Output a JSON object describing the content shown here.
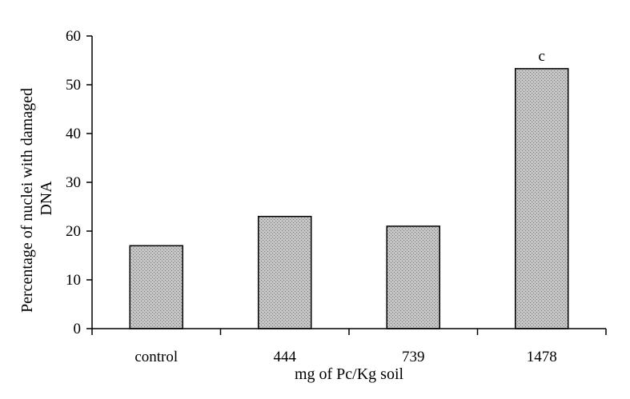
{
  "chart_data": {
    "type": "bar",
    "categories": [
      "control",
      "444",
      "739",
      "1478"
    ],
    "values": [
      17,
      23,
      21,
      53.3
    ],
    "annotations": [
      "",
      "",
      "",
      "c"
    ],
    "xlabel": "mg of Pc/Kg soil",
    "ylabel_lines": [
      "Percentage of nuclei with damaged",
      "DNA"
    ],
    "ylim": [
      0,
      60
    ],
    "yticks": [
      0,
      10,
      20,
      30,
      40,
      50,
      60
    ],
    "grid": false,
    "legend": "none",
    "colors": {
      "bar_fill": "#c4c4c4",
      "bar_stroke": "#000000",
      "axis": "#000000"
    }
  }
}
